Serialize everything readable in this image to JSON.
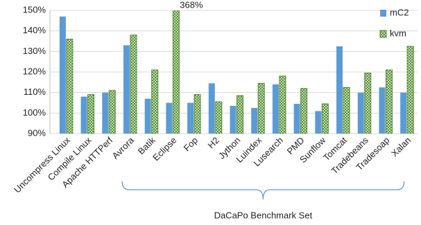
{
  "chart_data": {
    "type": "bar",
    "categories": [
      "Uncompress Linux",
      "Compile Linux",
      "Apache HTTPerf",
      "Avrora",
      "Batik",
      "Eclipse",
      "Fop",
      "H2",
      "Jython",
      "Luindex",
      "Lusearch",
      "PMD",
      "Sunflow",
      "Tomcat",
      "Tradebeans",
      "Tradesoap",
      "Xalan"
    ],
    "series": [
      {
        "name": "mC2",
        "color": "#5b9bd5",
        "values": [
          147,
          108,
          110,
          133,
          107,
          105,
          105,
          114.5,
          103.5,
          102.5,
          114,
          104.5,
          101,
          132.5,
          110,
          112.5,
          110
        ]
      },
      {
        "name": "kvm",
        "color": "#4e8a2e",
        "values": [
          136,
          109,
          111,
          138,
          121,
          368,
          109,
          105.5,
          108.5,
          114.5,
          118,
          112,
          104.5,
          112.5,
          119.5,
          121,
          132.5
        ],
        "value_labels": [
          null,
          null,
          null,
          null,
          null,
          "368%",
          null,
          null,
          null,
          null,
          null,
          null,
          null,
          null,
          null,
          null,
          null
        ]
      }
    ],
    "ylim": [
      90,
      150
    ],
    "yticks": [
      {
        "value": 90,
        "label": "90%"
      },
      {
        "value": 100,
        "label": "100%"
      },
      {
        "value": 110,
        "label": "110%"
      },
      {
        "value": 120,
        "label": "120%"
      },
      {
        "value": 130,
        "label": "130%"
      },
      {
        "value": 140,
        "label": "140%"
      },
      {
        "value": 150,
        "label": "150%"
      }
    ],
    "grid": true,
    "legend": "top-right",
    "annotation": "DaCaPo Benchmark Set"
  }
}
